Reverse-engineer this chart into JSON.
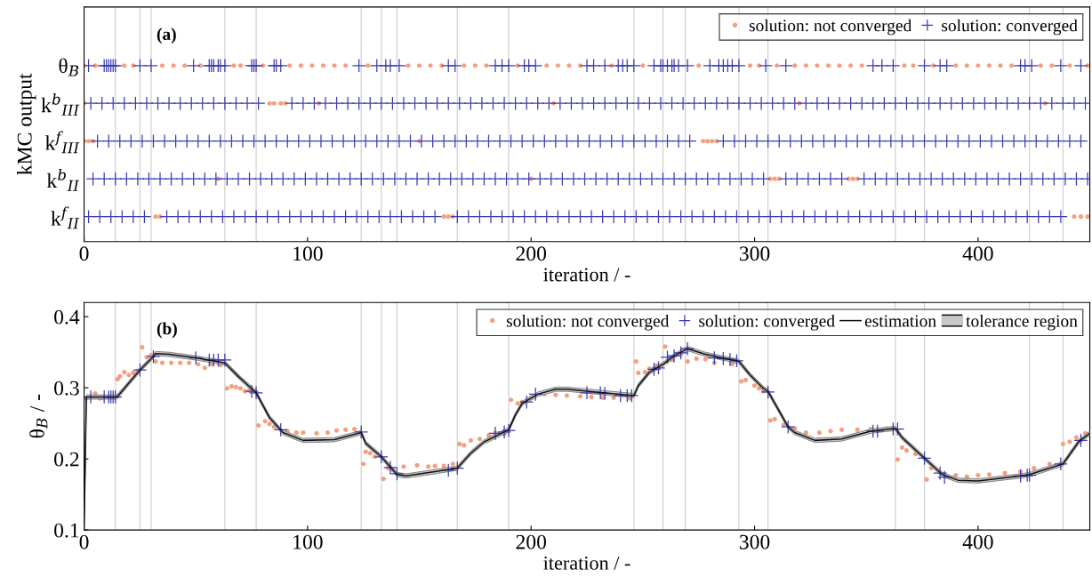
{
  "chart_data": [
    {
      "type": "scatter",
      "orientation": "horizontal",
      "xlabel": "iteration / -",
      "ylabel": "kMC output",
      "annotations": [
        "(a)"
      ],
      "categories": [
        "θ$_{B}$",
        "k$^{b}$$_{III}$",
        "k$^{f}$$_{III}$",
        "k$^{b}$$_{II}$",
        "k$^{f}$$_{II}$"
      ],
      "xlim": [
        0,
        450
      ],
      "xticks": [
        0,
        100,
        200,
        300,
        400
      ],
      "legend": "top right",
      "grid": false,
      "ref_lines": [
        {
          "axis": "x",
          "value": 14
        },
        {
          "axis": "x",
          "value": 25
        },
        {
          "axis": "x",
          "value": 30
        },
        {
          "axis": "x",
          "value": 63
        },
        {
          "axis": "x",
          "value": 77
        },
        {
          "axis": "x",
          "value": 124
        },
        {
          "axis": "x",
          "value": 133
        },
        {
          "axis": "x",
          "value": 140
        },
        {
          "axis": "x",
          "value": 167
        },
        {
          "axis": "x",
          "value": 190
        },
        {
          "axis": "x",
          "value": 246
        },
        {
          "axis": "x",
          "value": 259
        },
        {
          "axis": "x",
          "value": 269
        },
        {
          "axis": "x",
          "value": 293
        },
        {
          "axis": "x",
          "value": 306
        },
        {
          "axis": "x",
          "value": 363
        },
        {
          "axis": "x",
          "value": 376
        },
        {
          "axis": "x",
          "value": 423
        },
        {
          "axis": "x",
          "value": 438
        }
      ],
      "series": [
        {
          "name": "solution: not converged",
          "color": "#f4a07f",
          "marker": "circle",
          "values": [
            0,
            5,
            18,
            22,
            35,
            40,
            45,
            52,
            67,
            70,
            80,
            92,
            97,
            102,
            107,
            112,
            117,
            127,
            145,
            150,
            155,
            160,
            170,
            175,
            180,
            194,
            207,
            212,
            217,
            222,
            236,
            250,
            275,
            298,
            302,
            310,
            318,
            323,
            328,
            333,
            338,
            343,
            348,
            367,
            371,
            380,
            390,
            395,
            400,
            405,
            410,
            415,
            428,
            433,
            441,
            449
          ],
          "x": [
            "θ$_{B}$",
            "θ$_{B}$",
            "θ$_{B}$",
            "θ$_{B}$",
            "θ$_{B}$",
            "θ$_{B}$",
            "θ$_{B}$",
            "θ$_{B}$",
            "θ$_{B}$",
            "θ$_{B}$",
            "θ$_{B}$",
            "θ$_{B}$",
            "θ$_{B}$",
            "θ$_{B}$",
            "θ$_{B}$",
            "θ$_{B}$",
            "θ$_{B}$",
            "θ$_{B}$",
            "θ$_{B}$",
            "θ$_{B}$",
            "θ$_{B}$",
            "θ$_{B}$",
            "θ$_{B}$",
            "θ$_{B}$",
            "θ$_{B}$",
            "θ$_{B}$",
            "θ$_{B}$",
            "θ$_{B}$",
            "θ$_{B}$",
            "θ$_{B}$",
            "θ$_{B}$",
            "θ$_{B}$",
            "θ$_{B}$",
            "θ$_{B}$",
            "θ$_{B}$",
            "θ$_{B}$",
            "θ$_{B}$",
            "θ$_{B}$",
            "θ$_{B}$",
            "θ$_{B}$",
            "θ$_{B}$",
            "θ$_{B}$",
            "θ$_{B}$",
            "θ$_{B}$",
            "θ$_{B}$",
            "θ$_{B}$",
            "θ$_{B}$",
            "θ$_{B}$",
            "θ$_{B}$",
            "θ$_{B}$",
            "θ$_{B}$",
            "θ$_{B}$",
            "θ$_{B}$",
            "θ$_{B}$",
            "θ$_{B}$",
            "θ$_{B}$"
          ]
        },
        {
          "name": "solution: converged",
          "color": "#3c3cb4",
          "marker": "cross",
          "values": [
            2,
            9,
            10,
            11,
            12,
            13,
            14,
            25,
            30,
            49,
            56,
            57,
            58,
            60,
            61,
            63,
            75,
            76,
            77,
            85,
            86,
            88,
            123,
            131,
            135,
            137,
            141,
            163,
            166,
            184,
            187,
            190,
            197,
            199,
            202,
            225,
            228,
            233,
            239,
            241,
            243,
            246,
            255,
            258,
            259,
            261,
            263,
            264,
            266,
            270,
            280,
            284,
            286,
            288,
            290,
            293,
            305,
            314,
            353,
            357,
            362,
            376,
            383,
            386,
            419,
            421,
            424,
            437,
            446
          ],
          "x": [
            "θ$_{B}$",
            "θ$_{B}$",
            "θ$_{B}$",
            "θ$_{B}$",
            "θ$_{B}$",
            "θ$_{B}$",
            "θ$_{B}$",
            "θ$_{B}$",
            "θ$_{B}$",
            "θ$_{B}$",
            "θ$_{B}$",
            "θ$_{B}$",
            "θ$_{B}$",
            "θ$_{B}$",
            "θ$_{B}$",
            "θ$_{B}$",
            "θ$_{B}$",
            "θ$_{B}$",
            "θ$_{B}$",
            "θ$_{B}$",
            "θ$_{B}$",
            "θ$_{B}$",
            "θ$_{B}$",
            "θ$_{B}$",
            "θ$_{B}$",
            "θ$_{B}$",
            "θ$_{B}$",
            "θ$_{B}$",
            "θ$_{B}$",
            "θ$_{B}$",
            "θ$_{B}$",
            "θ$_{B}$",
            "θ$_{B}$",
            "θ$_{B}$",
            "θ$_{B}$",
            "θ$_{B}$",
            "θ$_{B}$",
            "θ$_{B}$",
            "θ$_{B}$",
            "θ$_{B}$",
            "θ$_{B}$",
            "θ$_{B}$",
            "θ$_{B}$",
            "θ$_{B}$",
            "θ$_{B}$",
            "θ$_{B}$",
            "θ$_{B}$",
            "θ$_{B}$",
            "θ$_{B}$",
            "θ$_{B}$",
            "θ$_{B}$",
            "θ$_{B}$",
            "θ$_{B}$",
            "θ$_{B}$",
            "θ$_{B}$",
            "θ$_{B}$",
            "θ$_{B}$",
            "θ$_{B}$",
            "θ$_{B}$",
            "θ$_{B}$",
            "θ$_{B}$",
            "θ$_{B}$",
            "θ$_{B}$",
            "θ$_{B}$",
            "θ$_{B}$",
            "θ$_{B}$",
            "θ$_{B}$",
            "θ$_{B}$",
            "θ$_{B}$"
          ]
        },
        {
          "color": "#f4a07f",
          "marker": "circle",
          "values": [
            0,
            83,
            85,
            88,
            90,
            105,
            210,
            320,
            430
          ],
          "x": [
            "k$^{b}$$_{III}$",
            "k$^{b}$$_{III}$",
            "k$^{b}$$_{III}$",
            "k$^{b}$$_{III}$",
            "k$^{b}$$_{III}$",
            "k$^{b}$$_{III}$",
            "k$^{b}$$_{III}$",
            "k$^{b}$$_{III}$",
            "k$^{b}$$_{III}$"
          ]
        },
        {
          "color": "#3c3cb4",
          "marker": "cross",
          "values": [
            3,
            8,
            13,
            18,
            23,
            28,
            33,
            38,
            43,
            48,
            53,
            58,
            63,
            68,
            73,
            78,
            93,
            98,
            103,
            108,
            113,
            118,
            123,
            128,
            133,
            138,
            143,
            148,
            153,
            158,
            163,
            168,
            173,
            178,
            183,
            188,
            193,
            198,
            203,
            208,
            213,
            218,
            223,
            228,
            233,
            238,
            243,
            248,
            253,
            258,
            263,
            268,
            273,
            278,
            283,
            288,
            293,
            298,
            303,
            308,
            313,
            318,
            323,
            328,
            333,
            338,
            343,
            348,
            353,
            358,
            363,
            368,
            373,
            378,
            383,
            388,
            393,
            398,
            403,
            408,
            413,
            418,
            423,
            428,
            433,
            438,
            443,
            448
          ],
          "x": [
            "k$^{b}$$_{III}$",
            "k$^{b}$$_{III}$",
            "k$^{b}$$_{III}$",
            "k$^{b}$$_{III}$",
            "k$^{b}$$_{III}$",
            "k$^{b}$$_{III}$",
            "k$^{b}$$_{III}$",
            "k$^{b}$$_{III}$",
            "k$^{b}$$_{III}$",
            "k$^{b}$$_{III}$",
            "k$^{b}$$_{III}$",
            "k$^{b}$$_{III}$",
            "k$^{b}$$_{III}$",
            "k$^{b}$$_{III}$",
            "k$^{b}$$_{III}$",
            "k$^{b}$$_{III}$",
            "k$^{b}$$_{III}$",
            "k$^{b}$$_{III}$",
            "k$^{b}$$_{III}$",
            "k$^{b}$$_{III}$",
            "k$^{b}$$_{III}$",
            "k$^{b}$$_{III}$",
            "k$^{b}$$_{III}$",
            "k$^{b}$$_{III}$",
            "k$^{b}$$_{III}$",
            "k$^{b}$$_{III}$",
            "k$^{b}$$_{III}$",
            "k$^{b}$$_{III}$",
            "k$^{b}$$_{III}$",
            "k$^{b}$$_{III}$",
            "k$^{b}$$_{III}$",
            "k$^{b}$$_{III}$",
            "k$^{b}$$_{III}$",
            "k$^{b}$$_{III}$",
            "k$^{b}$$_{III}$",
            "k$^{b}$$_{III}$",
            "k$^{b}$$_{III}$",
            "k$^{b}$$_{III}$",
            "k$^{b}$$_{III}$",
            "k$^{b}$$_{III}$",
            "k$^{b}$$_{III}$",
            "k$^{b}$$_{III}$",
            "k$^{b}$$_{III}$",
            "k$^{b}$$_{III}$",
            "k$^{b}$$_{III}$",
            "k$^{b}$$_{III}$",
            "k$^{b}$$_{III}$",
            "k$^{b}$$_{III}$",
            "k$^{b}$$_{III}$",
            "k$^{b}$$_{III}$",
            "k$^{b}$$_{III}$",
            "k$^{b}$$_{III}$",
            "k$^{b}$$_{III}$",
            "k$^{b}$$_{III}$",
            "k$^{b}$$_{III}$",
            "k$^{b}$$_{III}$",
            "k$^{b}$$_{III}$",
            "k$^{b}$$_{III}$",
            "k$^{b}$$_{III}$",
            "k$^{b}$$_{III}$",
            "k$^{b}$$_{III}$",
            "k$^{b}$$_{III}$",
            "k$^{b}$$_{III}$",
            "k$^{b}$$_{III}$",
            "k$^{b}$$_{III}$",
            "k$^{b}$$_{III}$",
            "k$^{b}$$_{III}$",
            "k$^{b}$$_{III}$",
            "k$^{b}$$_{III}$",
            "k$^{b}$$_{III}$",
            "k$^{b}$$_{III}$",
            "k$^{b}$$_{III}$",
            "k$^{b}$$_{III}$",
            "k$^{b}$$_{III}$",
            "k$^{b}$$_{III}$",
            "k$^{b}$$_{III}$",
            "k$^{b}$$_{III}$",
            "k$^{b}$$_{III}$",
            "k$^{b}$$_{III}$",
            "k$^{b}$$_{III}$",
            "k$^{b}$$_{III}$",
            "k$^{b}$$_{III}$",
            "k$^{b}$$_{III}$",
            "k$^{b}$$_{III}$",
            "k$^{b}$$_{III}$",
            "k$^{b}$$_{III}$",
            "k$^{b}$$_{III}$",
            "k$^{b}$$_{III}$"
          ]
        },
        {
          "color": "#f4a07f",
          "marker": "circle",
          "values": [
            0,
            2,
            4,
            150,
            277,
            279,
            281,
            283
          ],
          "x": [
            "k$^{f}$$_{III}$",
            "k$^{f}$$_{III}$",
            "k$^{f}$$_{III}$",
            "k$^{f}$$_{III}$",
            "k$^{f}$$_{III}$",
            "k$^{f}$$_{III}$",
            "k$^{f}$$_{III}$",
            "k$^{f}$$_{III}$"
          ]
        },
        {
          "color": "#3c3cb4",
          "marker": "cross",
          "values": [
            6,
            11,
            16,
            21,
            26,
            31,
            36,
            41,
            46,
            51,
            56,
            61,
            66,
            71,
            76,
            81,
            86,
            91,
            96,
            101,
            106,
            111,
            116,
            121,
            126,
            131,
            136,
            141,
            146,
            151,
            156,
            161,
            166,
            171,
            176,
            181,
            186,
            191,
            196,
            201,
            206,
            211,
            216,
            221,
            226,
            231,
            236,
            241,
            246,
            251,
            256,
            261,
            266,
            271,
            286,
            291,
            296,
            301,
            306,
            311,
            316,
            321,
            326,
            331,
            336,
            341,
            346,
            351,
            356,
            361,
            366,
            371,
            376,
            381,
            386,
            391,
            396,
            401,
            406,
            411,
            416,
            421,
            426,
            431,
            436,
            441,
            446
          ],
          "x": [
            "k$^{f}$$_{III}$",
            "k$^{f}$$_{III}$",
            "k$^{f}$$_{III}$",
            "k$^{f}$$_{III}$",
            "k$^{f}$$_{III}$",
            "k$^{f}$$_{III}$",
            "k$^{f}$$_{III}$",
            "k$^{f}$$_{III}$",
            "k$^{f}$$_{III}$",
            "k$^{f}$$_{III}$",
            "k$^{f}$$_{III}$",
            "k$^{f}$$_{III}$",
            "k$^{f}$$_{III}$",
            "k$^{f}$$_{III}$",
            "k$^{f}$$_{III}$",
            "k$^{f}$$_{III}$",
            "k$^{f}$$_{III}$",
            "k$^{f}$$_{III}$",
            "k$^{f}$$_{III}$",
            "k$^{f}$$_{III}$",
            "k$^{f}$$_{III}$",
            "k$^{f}$$_{III}$",
            "k$^{f}$$_{III}$",
            "k$^{f}$$_{III}$",
            "k$^{f}$$_{III}$",
            "k$^{f}$$_{III}$",
            "k$^{f}$$_{III}$",
            "k$^{f}$$_{III}$",
            "k$^{f}$$_{III}$",
            "k$^{f}$$_{III}$",
            "k$^{f}$$_{III}$",
            "k$^{f}$$_{III}$",
            "k$^{f}$$_{III}$",
            "k$^{f}$$_{III}$",
            "k$^{f}$$_{III}$",
            "k$^{f}$$_{III}$",
            "k$^{f}$$_{III}$",
            "k$^{f}$$_{III}$",
            "k$^{f}$$_{III}$",
            "k$^{f}$$_{III}$",
            "k$^{f}$$_{III}$",
            "k$^{f}$$_{III}$",
            "k$^{f}$$_{III}$",
            "k$^{f}$$_{III}$",
            "k$^{f}$$_{III}$",
            "k$^{f}$$_{III}$",
            "k$^{f}$$_{III}$",
            "k$^{f}$$_{III}$",
            "k$^{f}$$_{III}$",
            "k$^{f}$$_{III}$",
            "k$^{f}$$_{III}$",
            "k$^{f}$$_{III}$",
            "k$^{f}$$_{III}$",
            "k$^{f}$$_{III}$",
            "k$^{f}$$_{III}$",
            "k$^{f}$$_{III}$",
            "k$^{f}$$_{III}$",
            "k$^{f}$$_{III}$",
            "k$^{f}$$_{III}$",
            "k$^{f}$$_{III}$",
            "k$^{f}$$_{III}$",
            "k$^{f}$$_{III}$",
            "k$^{f}$$_{III}$",
            "k$^{f}$$_{III}$",
            "k$^{f}$$_{III}$",
            "k$^{f}$$_{III}$",
            "k$^{f}$$_{III}$",
            "k$^{f}$$_{III}$",
            "k$^{f}$$_{III}$",
            "k$^{f}$$_{III}$",
            "k$^{f}$$_{III}$",
            "k$^{f}$$_{III}$",
            "k$^{f}$$_{III}$",
            "k$^{f}$$_{III}$",
            "k$^{f}$$_{III}$",
            "k$^{f}$$_{III}$",
            "k$^{f}$$_{III}$",
            "k$^{f}$$_{III}$",
            "k$^{f}$$_{III}$",
            "k$^{f}$$_{III}$",
            "k$^{f}$$_{III}$",
            "k$^{f}$$_{III}$",
            "k$^{f}$$_{III}$",
            "k$^{f}$$_{III}$",
            "k$^{f}$$_{III}$",
            "k$^{f}$$_{III}$",
            "k$^{f}$$_{III}$"
          ]
        },
        {
          "color": "#f4a07f",
          "marker": "circle",
          "values": [
            60,
            200,
            307,
            309,
            311,
            342,
            344,
            346
          ],
          "x": [
            "k$^{b}$$_{II}$",
            "k$^{b}$$_{II}$",
            "k$^{b}$$_{II}$",
            "k$^{b}$$_{II}$",
            "k$^{b}$$_{II}$",
            "k$^{b}$$_{II}$",
            "k$^{b}$$_{II}$",
            "k$^{b}$$_{II}$"
          ]
        },
        {
          "color": "#3c3cb4",
          "marker": "cross",
          "values": [
            4,
            9,
            14,
            19,
            24,
            29,
            34,
            39,
            44,
            49,
            54,
            59,
            64,
            69,
            74,
            79,
            84,
            89,
            94,
            99,
            104,
            109,
            114,
            119,
            124,
            129,
            134,
            139,
            144,
            149,
            154,
            159,
            164,
            169,
            174,
            179,
            184,
            189,
            194,
            199,
            204,
            209,
            214,
            219,
            224,
            229,
            234,
            239,
            244,
            249,
            254,
            259,
            264,
            269,
            274,
            279,
            284,
            289,
            294,
            299,
            304,
            314,
            319,
            324,
            329,
            334,
            339,
            349,
            354,
            359,
            364,
            369,
            374,
            379,
            384,
            389,
            394,
            399,
            404,
            409,
            414,
            419,
            424,
            429,
            434,
            439,
            444,
            449
          ],
          "x": [
            "k$^{b}$$_{II}$",
            "k$^{b}$$_{II}$",
            "k$^{b}$$_{II}$",
            "k$^{b}$$_{II}$",
            "k$^{b}$$_{II}$",
            "k$^{b}$$_{II}$",
            "k$^{b}$$_{II}$",
            "k$^{b}$$_{II}$",
            "k$^{b}$$_{II}$",
            "k$^{b}$$_{II}$",
            "k$^{b}$$_{II}$",
            "k$^{b}$$_{II}$",
            "k$^{b}$$_{II}$",
            "k$^{b}$$_{II}$",
            "k$^{b}$$_{II}$",
            "k$^{b}$$_{II}$",
            "k$^{b}$$_{II}$",
            "k$^{b}$$_{II}$",
            "k$^{b}$$_{II}$",
            "k$^{b}$$_{II}$",
            "k$^{b}$$_{II}$",
            "k$^{b}$$_{II}$",
            "k$^{b}$$_{II}$",
            "k$^{b}$$_{II}$",
            "k$^{b}$$_{II}$",
            "k$^{b}$$_{II}$",
            "k$^{b}$$_{II}$",
            "k$^{b}$$_{II}$",
            "k$^{b}$$_{II}$",
            "k$^{b}$$_{II}$",
            "k$^{b}$$_{II}$",
            "k$^{b}$$_{II}$",
            "k$^{b}$$_{II}$",
            "k$^{b}$$_{II}$",
            "k$^{b}$$_{II}$",
            "k$^{b}$$_{II}$",
            "k$^{b}$$_{II}$",
            "k$^{b}$$_{II}$",
            "k$^{b}$$_{II}$",
            "k$^{b}$$_{II}$",
            "k$^{b}$$_{II}$",
            "k$^{b}$$_{II}$",
            "k$^{b}$$_{II}$",
            "k$^{b}$$_{II}$",
            "k$^{b}$$_{II}$",
            "k$^{b}$$_{II}$",
            "k$^{b}$$_{II}$",
            "k$^{b}$$_{II}$",
            "k$^{b}$$_{II}$",
            "k$^{b}$$_{II}$",
            "k$^{b}$$_{II}$",
            "k$^{b}$$_{II}$",
            "k$^{b}$$_{II}$",
            "k$^{b}$$_{II}$",
            "k$^{b}$$_{II}$",
            "k$^{b}$$_{II}$",
            "k$^{b}$$_{II}$",
            "k$^{b}$$_{II}$",
            "k$^{b}$$_{II}$",
            "k$^{b}$$_{II}$",
            "k$^{b}$$_{II}$",
            "k$^{b}$$_{II}$",
            "k$^{b}$$_{II}$",
            "k$^{b}$$_{II}$",
            "k$^{b}$$_{II}$",
            "k$^{b}$$_{II}$",
            "k$^{b}$$_{II}$",
            "k$^{b}$$_{II}$",
            "k$^{b}$$_{II}$",
            "k$^{b}$$_{II}$",
            "k$^{b}$$_{II}$",
            "k$^{b}$$_{II}$",
            "k$^{b}$$_{II}$",
            "k$^{b}$$_{II}$",
            "k$^{b}$$_{II}$",
            "k$^{b}$$_{II}$",
            "k$^{b}$$_{II}$",
            "k$^{b}$$_{II}$",
            "k$^{b}$$_{II}$",
            "k$^{b}$$_{II}$",
            "k$^{b}$$_{II}$",
            "k$^{b}$$_{II}$",
            "k$^{b}$$_{II}$",
            "k$^{b}$$_{II}$",
            "k$^{b}$$_{II}$",
            "k$^{b}$$_{II}$",
            "k$^{b}$$_{II}$",
            "k$^{b}$$_{II}$"
          ]
        },
        {
          "color": "#f4a07f",
          "marker": "circle",
          "values": [
            32,
            34,
            161,
            163,
            165,
            443,
            446,
            449
          ],
          "x": [
            "k$^{f}$$_{II}$",
            "k$^{f}$$_{II}$",
            "k$^{f}$$_{II}$",
            "k$^{f}$$_{II}$",
            "k$^{f}$$_{II}$",
            "k$^{f}$$_{II}$",
            "k$^{f}$$_{II}$",
            "k$^{f}$$_{II}$"
          ]
        },
        {
          "color": "#3c3cb4",
          "marker": "cross",
          "values": [
            2,
            7,
            12,
            17,
            22,
            27,
            37,
            42,
            47,
            52,
            57,
            62,
            67,
            72,
            77,
            82,
            87,
            92,
            97,
            102,
            107,
            112,
            117,
            122,
            127,
            132,
            137,
            142,
            147,
            152,
            157,
            167,
            172,
            177,
            182,
            187,
            192,
            197,
            202,
            207,
            212,
            217,
            222,
            227,
            232,
            237,
            242,
            247,
            252,
            257,
            262,
            267,
            272,
            277,
            282,
            287,
            292,
            297,
            302,
            307,
            312,
            317,
            322,
            327,
            332,
            337,
            342,
            347,
            352,
            357,
            362,
            367,
            372,
            377,
            382,
            387,
            392,
            397,
            402,
            407,
            412,
            417,
            422,
            427,
            432,
            437
          ],
          "x": [
            "k$^{f}$$_{II}$",
            "k$^{f}$$_{II}$",
            "k$^{f}$$_{II}$",
            "k$^{f}$$_{II}$",
            "k$^{f}$$_{II}$",
            "k$^{f}$$_{II}$",
            "k$^{f}$$_{II}$",
            "k$^{f}$$_{II}$",
            "k$^{f}$$_{II}$",
            "k$^{f}$$_{II}$",
            "k$^{f}$$_{II}$",
            "k$^{f}$$_{II}$",
            "k$^{f}$$_{II}$",
            "k$^{f}$$_{II}$",
            "k$^{f}$$_{II}$",
            "k$^{f}$$_{II}$",
            "k$^{f}$$_{II}$",
            "k$^{f}$$_{II}$",
            "k$^{f}$$_{II}$",
            "k$^{f}$$_{II}$",
            "k$^{f}$$_{II}$",
            "k$^{f}$$_{II}$",
            "k$^{f}$$_{II}$",
            "k$^{f}$$_{II}$",
            "k$^{f}$$_{II}$",
            "k$^{f}$$_{II}$",
            "k$^{f}$$_{II}$",
            "k$^{f}$$_{II}$",
            "k$^{f}$$_{II}$",
            "k$^{f}$$_{II}$",
            "k$^{f}$$_{II}$",
            "k$^{f}$$_{II}$",
            "k$^{f}$$_{II}$",
            "k$^{f}$$_{II}$",
            "k$^{f}$$_{II}$",
            "k$^{f}$$_{II}$",
            "k$^{f}$$_{II}$",
            "k$^{f}$$_{II}$",
            "k$^{f}$$_{II}$",
            "k$^{f}$$_{II}$",
            "k$^{f}$$_{II}$",
            "k$^{f}$$_{II}$",
            "k$^{f}$$_{II}$",
            "k$^{f}$$_{II}$",
            "k$^{f}$$_{II}$",
            "k$^{f}$$_{II}$",
            "k$^{f}$$_{II}$",
            "k$^{f}$$_{II}$",
            "k$^{f}$$_{II}$",
            "k$^{f}$$_{II}$",
            "k$^{f}$$_{II}$",
            "k$^{f}$$_{II}$",
            "k$^{f}$$_{II}$",
            "k$^{f}$$_{II}$",
            "k$^{f}$$_{II}$",
            "k$^{f}$$_{II}$",
            "k$^{f}$$_{II}$",
            "k$^{f}$$_{II}$",
            "k$^{f}$$_{II}$",
            "k$^{f}$$_{II}$",
            "k$^{f}$$_{II}$",
            "k$^{f}$$_{II}$",
            "k$^{f}$$_{II}$",
            "k$^{f}$$_{II}$",
            "k$^{f}$$_{II}$",
            "k$^{f}$$_{II}$",
            "k$^{f}$$_{II}$",
            "k$^{f}$$_{II}$",
            "k$^{f}$$_{II}$",
            "k$^{f}$$_{II}$",
            "k$^{f}$$_{II}$",
            "k$^{f}$$_{II}$",
            "k$^{f}$$_{II}$",
            "k$^{f}$$_{II}$",
            "k$^{f}$$_{II}$",
            "k$^{f}$$_{II}$",
            "k$^{f}$$_{II}$",
            "k$^{f}$$_{II}$",
            "k$^{f}$$_{II}$",
            "k$^{f}$$_{II}$",
            "k$^{f}$$_{II}$",
            "k$^{f}$$_{II}$",
            "k$^{f}$$_{II}$",
            "k$^{f}$$_{II}$",
            "k$^{f}$$_{II}$",
            "k$^{f}$$_{II}$"
          ]
        }
      ]
    },
    {
      "type": "scatter",
      "xlabel": "iteration / -",
      "ylabel": "θ$_{B}$ / -",
      "annotations": [
        "(b)",
        "tolerance region"
      ],
      "xlim": [
        0,
        450
      ],
      "xticks": [
        0,
        100,
        200,
        300,
        400
      ],
      "ylim": [
        0.1,
        0.42
      ],
      "yticks": [
        0.1,
        0.2,
        0.3,
        0.4
      ],
      "legend": "top right",
      "grid": false,
      "ref_lines": [
        {
          "axis": "x",
          "value": 14
        },
        {
          "axis": "x",
          "value": 25
        },
        {
          "axis": "x",
          "value": 30
        },
        {
          "axis": "x",
          "value": 63
        },
        {
          "axis": "x",
          "value": 77
        },
        {
          "axis": "x",
          "value": 124
        },
        {
          "axis": "x",
          "value": 133
        },
        {
          "axis": "x",
          "value": 140
        },
        {
          "axis": "x",
          "value": 167
        },
        {
          "axis": "x",
          "value": 190
        },
        {
          "axis": "x",
          "value": 246
        },
        {
          "axis": "x",
          "value": 259
        },
        {
          "axis": "x",
          "value": 269
        },
        {
          "axis": "x",
          "value": 293
        },
        {
          "axis": "x",
          "value": 306
        },
        {
          "axis": "x",
          "value": 363
        },
        {
          "axis": "x",
          "value": 376
        },
        {
          "axis": "x",
          "value": 423
        },
        {
          "axis": "x",
          "value": 438
        }
      ],
      "series": [
        {
          "name": "solution: not converged",
          "color": "#f4a07f",
          "marker": "circle",
          "x": [
            1,
            5,
            7,
            8,
            15,
            16,
            18,
            20,
            22,
            24,
            26,
            28,
            30,
            32,
            35,
            39,
            43,
            47,
            51,
            54,
            57,
            61,
            64,
            66,
            68,
            70,
            72,
            74,
            78,
            81,
            83,
            85,
            91,
            95,
            98,
            104,
            109,
            113,
            117,
            121,
            125,
            126,
            128,
            130,
            134,
            136,
            138,
            143,
            149,
            154,
            157,
            161,
            165,
            168,
            170,
            173,
            177,
            181,
            184,
            188,
            191,
            194,
            196,
            200,
            206,
            211,
            216,
            222,
            227,
            232,
            237,
            244,
            247,
            248,
            251,
            253,
            256,
            260,
            263,
            267,
            270,
            274,
            278,
            282,
            290,
            294,
            296,
            300,
            302,
            304,
            307,
            309,
            313,
            318,
            323,
            329,
            334,
            339,
            346,
            352,
            359,
            364,
            366,
            368,
            372,
            377,
            379,
            383,
            390,
            395,
            400,
            405,
            412,
            419,
            425,
            432,
            438,
            441,
            444,
            448
          ],
          "values": [
            0.285,
            0.292,
            0.285,
            0.286,
            0.312,
            0.316,
            0.322,
            0.318,
            0.321,
            0.324,
            0.357,
            0.343,
            0.346,
            0.337,
            0.335,
            0.335,
            0.335,
            0.335,
            0.333,
            0.328,
            0.333,
            0.332,
            0.299,
            0.302,
            0.301,
            0.299,
            0.295,
            0.296,
            0.247,
            0.253,
            0.249,
            0.245,
            0.239,
            0.237,
            0.237,
            0.236,
            0.237,
            0.24,
            0.241,
            0.242,
            0.193,
            0.21,
            0.208,
            0.203,
            0.172,
            0.187,
            0.185,
            0.189,
            0.191,
            0.189,
            0.19,
            0.19,
            0.193,
            0.221,
            0.219,
            0.226,
            0.228,
            0.233,
            0.237,
            0.235,
            0.283,
            0.278,
            0.28,
            0.286,
            0.291,
            0.29,
            0.289,
            0.288,
            0.287,
            0.286,
            0.286,
            0.285,
            0.337,
            0.321,
            0.322,
            0.327,
            0.331,
            0.358,
            0.339,
            0.347,
            0.337,
            0.341,
            0.34,
            0.335,
            0.333,
            0.309,
            0.311,
            0.303,
            0.299,
            0.295,
            0.254,
            0.256,
            0.248,
            0.243,
            0.237,
            0.237,
            0.239,
            0.241,
            0.241,
            0.242,
            0.243,
            0.199,
            0.216,
            0.212,
            0.207,
            0.171,
            0.187,
            0.181,
            0.177,
            0.175,
            0.177,
            0.178,
            0.18,
            0.182,
            0.187,
            0.193,
            0.221,
            0.224,
            0.23,
            0.236
          ]
        },
        {
          "name": "solution: converged",
          "color": "#3c3cb4",
          "marker": "cross",
          "x": [
            3,
            9,
            11,
            12,
            13,
            14,
            25,
            31,
            50,
            56,
            58,
            60,
            63,
            75,
            77,
            88,
            124,
            133,
            137,
            140,
            163,
            167,
            184,
            188,
            190,
            198,
            202,
            225,
            231,
            233,
            240,
            243,
            245,
            255,
            257,
            261,
            264,
            267,
            270,
            282,
            286,
            289,
            292,
            306,
            315,
            353,
            355,
            362,
            364,
            376,
            383,
            385,
            419,
            422,
            423,
            437,
            446
          ],
          "values": [
            0.287,
            0.287,
            0.287,
            0.287,
            0.287,
            0.287,
            0.325,
            0.344,
            0.342,
            0.339,
            0.339,
            0.339,
            0.339,
            0.295,
            0.293,
            0.241,
            0.238,
            0.203,
            0.188,
            0.179,
            0.184,
            0.187,
            0.236,
            0.238,
            0.24,
            0.28,
            0.291,
            0.293,
            0.293,
            0.292,
            0.289,
            0.289,
            0.289,
            0.326,
            0.328,
            0.343,
            0.345,
            0.349,
            0.355,
            0.342,
            0.341,
            0.34,
            0.338,
            0.294,
            0.245,
            0.239,
            0.239,
            0.242,
            0.242,
            0.201,
            0.18,
            0.174,
            0.176,
            0.177,
            0.177,
            0.193,
            0.226
          ]
        },
        {
          "type": "line",
          "name": "estimation",
          "color": "#111111",
          "line_style": "solid",
          "x": [
            0,
            1,
            14,
            15,
            25,
            31,
            32,
            38,
            50,
            63,
            69,
            77,
            83,
            89,
            98,
            112,
            124,
            126,
            133,
            140,
            144,
            157,
            167,
            173,
            179,
            190,
            193,
            196,
            203,
            211,
            216,
            226,
            246,
            248,
            253,
            259,
            264,
            270,
            278,
            293,
            298,
            304,
            306,
            315,
            318,
            327,
            339,
            352,
            363,
            366,
            376,
            384,
            391,
            400,
            419,
            423,
            438,
            445,
            450
          ],
          "values": [
            0.1,
            0.287,
            0.287,
            0.288,
            0.325,
            0.344,
            0.348,
            0.347,
            0.342,
            0.335,
            0.316,
            0.293,
            0.258,
            0.237,
            0.226,
            0.227,
            0.237,
            0.222,
            0.203,
            0.178,
            0.176,
            0.182,
            0.187,
            0.208,
            0.224,
            0.241,
            0.262,
            0.278,
            0.291,
            0.298,
            0.298,
            0.295,
            0.289,
            0.303,
            0.322,
            0.333,
            0.345,
            0.355,
            0.347,
            0.337,
            0.318,
            0.299,
            0.295,
            0.245,
            0.237,
            0.226,
            0.228,
            0.239,
            0.243,
            0.23,
            0.201,
            0.178,
            0.17,
            0.169,
            0.176,
            0.178,
            0.193,
            0.224,
            0.236
          ],
          "lower": [
            0.1,
            0.284,
            0.284,
            0.285,
            0.322,
            0.341,
            0.345,
            0.344,
            0.339,
            0.332,
            0.313,
            0.29,
            0.255,
            0.234,
            0.223,
            0.224,
            0.234,
            0.219,
            0.2,
            0.175,
            0.173,
            0.179,
            0.184,
            0.205,
            0.221,
            0.238,
            0.259,
            0.275,
            0.288,
            0.295,
            0.295,
            0.292,
            0.286,
            0.3,
            0.319,
            0.33,
            0.342,
            0.352,
            0.344,
            0.334,
            0.315,
            0.296,
            0.292,
            0.242,
            0.234,
            0.223,
            0.225,
            0.236,
            0.24,
            0.227,
            0.198,
            0.175,
            0.167,
            0.166,
            0.173,
            0.175,
            0.19,
            0.221,
            0.233
          ],
          "upper": [
            0.103,
            0.29,
            0.29,
            0.291,
            0.328,
            0.347,
            0.351,
            0.35,
            0.345,
            0.338,
            0.319,
            0.296,
            0.261,
            0.24,
            0.229,
            0.23,
            0.24,
            0.225,
            0.206,
            0.181,
            0.179,
            0.185,
            0.19,
            0.211,
            0.227,
            0.244,
            0.265,
            0.281,
            0.294,
            0.301,
            0.301,
            0.298,
            0.292,
            0.306,
            0.325,
            0.336,
            0.348,
            0.358,
            0.35,
            0.34,
            0.321,
            0.302,
            0.298,
            0.248,
            0.24,
            0.229,
            0.231,
            0.242,
            0.246,
            0.233,
            0.204,
            0.181,
            0.173,
            0.172,
            0.179,
            0.181,
            0.196,
            0.227,
            0.239
          ]
        }
      ]
    }
  ]
}
